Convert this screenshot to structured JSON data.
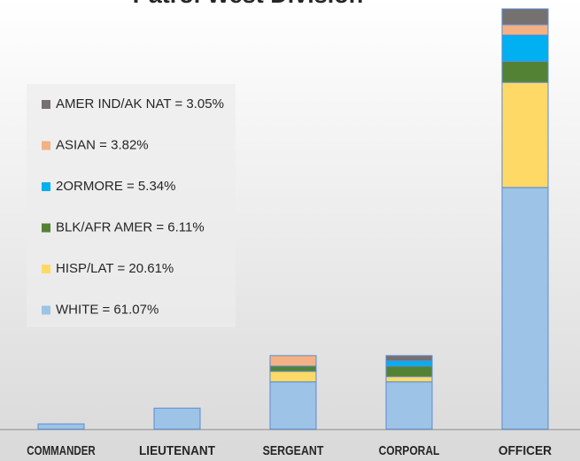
{
  "chart_data": {
    "type": "stacked_bar",
    "title": "Patrol West Division",
    "categories": [
      "COMMANDER",
      "LIEUTENANT",
      "SERGEANT",
      "CORPORAL",
      "OFFICER"
    ],
    "ylim": [
      0,
      80
    ],
    "legend": "left",
    "series": [
      {
        "name": "WHITE = 61.07%",
        "color": "#9dc3e6",
        "values": [
          1,
          4,
          9,
          9,
          46
        ]
      },
      {
        "name": "HISP/LAT = 20.61%",
        "color": "#ffd966",
        "values": [
          0,
          0,
          2,
          1,
          20
        ]
      },
      {
        "name": "BLK/AFR AMER = 6.11%",
        "color": "#548235",
        "values": [
          0,
          0,
          1,
          2,
          4
        ]
      },
      {
        "name": "2ORMORE = 5.34%",
        "color": "#00b0f0",
        "values": [
          0,
          0,
          0,
          1,
          5
        ]
      },
      {
        "name": "ASIAN = 3.82%",
        "color": "#f4b183",
        "values": [
          0,
          0,
          2,
          0,
          2
        ]
      },
      {
        "name": "AMER IND/AK NAT = 3.05%",
        "color": "#767171",
        "values": [
          0,
          0,
          0,
          1,
          3
        ]
      }
    ]
  }
}
